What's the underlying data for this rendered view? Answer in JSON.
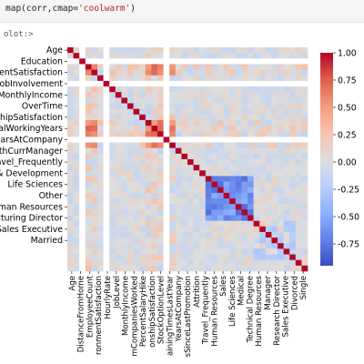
{
  "code": {
    "fn": "map(corr,cmap=",
    "cmap": "'coolwarm'",
    "close": ")"
  },
  "output_label": "olot:>",
  "chart_data": {
    "type": "heatmap",
    "cmap": "coolwarm",
    "row_labels": [
      "Age",
      "Education",
      "nmentSatisfaction",
      "JobInvolvement",
      "MonthlyIncome",
      "OverTime",
      "shipSatisfaction",
      "talWorkingYears",
      "earsAtCompany",
      "ithCurrManager",
      "avel_Frequently",
      "& Development",
      "Life Sciences",
      "Other",
      "uman Resources",
      "cturing Director",
      "Sales Executive",
      "Married"
    ],
    "col_labels": [
      "Age",
      "DistanceFromHome",
      "EmployeeCount",
      "ronmentSatisfaction",
      "HourlyRate",
      "JobLevel",
      "MonthlyIncome",
      "mCompaniesWorked",
      "PercentSalaryHike",
      "onshipSatisfaction",
      "StockOptionLevel",
      "ainingTimesLastYear",
      "YearsAtCompany",
      "sSinceLastPromotion",
      "Attrition",
      "Travel_Frequently",
      "Human Resources",
      "Sales",
      "Life Sciences",
      "Medical",
      "Technical Degree",
      "Human Resources",
      "Manager",
      "Research Director",
      "Sales Executive",
      "Divorced",
      "Single"
    ],
    "colorbar_ticks": [
      "1.00",
      "0.75",
      "0.50",
      "0.25",
      "0.00",
      "-0.25",
      "-0.50",
      "-0.75"
    ],
    "vmin": -0.95,
    "vmax": 1.0
  }
}
